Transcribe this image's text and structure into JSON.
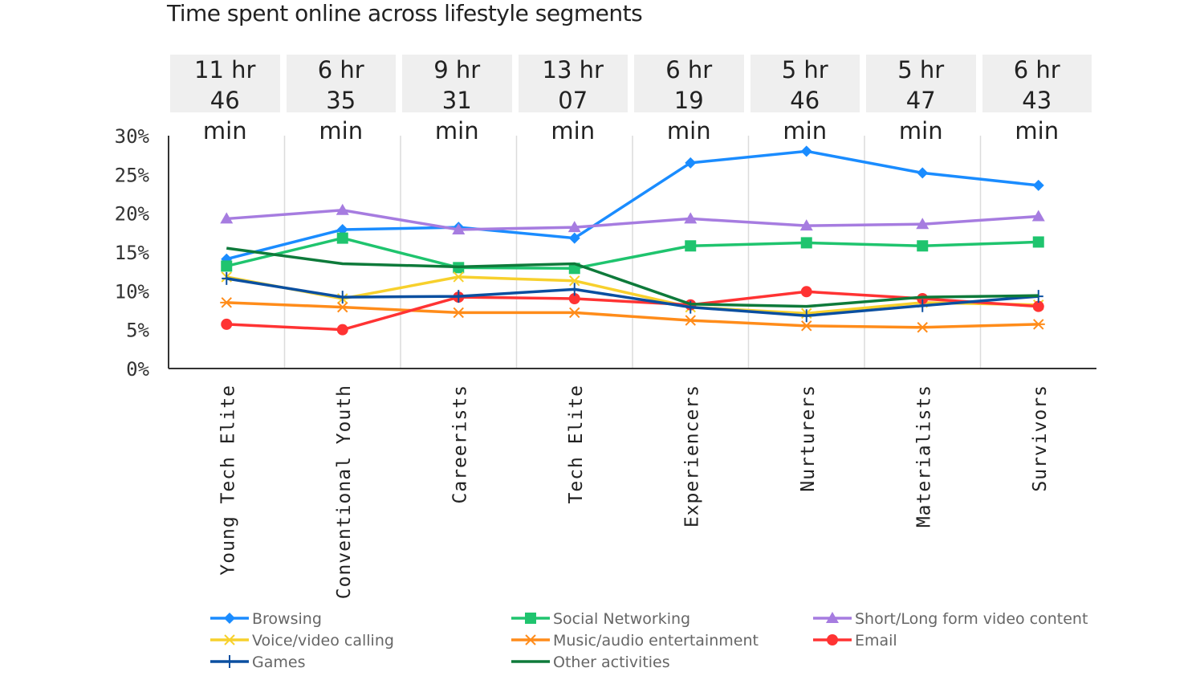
{
  "chart_data": {
    "type": "line",
    "title": "Time spent online across lifestyle segments",
    "categories": [
      "Young Tech Elite",
      "Conventional Youth",
      "Careerists",
      "Tech Elite",
      "Experiencers",
      "Nurturers",
      "Materialists",
      "Survivors"
    ],
    "category_headers": [
      "11 hr 46 min",
      "6 hr 35 min",
      "9 hr 31 min",
      "13 hr 07 min",
      "6 hr 19 min",
      "5 hr 46 min",
      "5 hr 47 min",
      "6 hr 43 min"
    ],
    "ylim": [
      0,
      30
    ],
    "yticks": [
      0,
      5,
      10,
      15,
      20,
      25,
      30
    ],
    "ytick_labels": [
      "0%",
      "5%",
      "10%",
      "15%",
      "20%",
      "25%",
      "30%"
    ],
    "grid": "vertical",
    "legend_placement": "bottom",
    "series": [
      {
        "name": "Browsing",
        "color": "#1a8cff",
        "marker": "diamond",
        "values": [
          14.1,
          17.9,
          18.2,
          16.8,
          26.5,
          28.0,
          25.2,
          23.6
        ]
      },
      {
        "name": "Social Networking",
        "color": "#1fc46e",
        "marker": "square",
        "values": [
          13.2,
          16.8,
          13.0,
          12.9,
          15.8,
          16.2,
          15.8,
          16.3
        ]
      },
      {
        "name": "Short/Long form video content",
        "color": "#a67ce0",
        "marker": "triangle",
        "values": [
          19.3,
          20.4,
          17.9,
          18.2,
          19.3,
          18.4,
          18.6,
          19.6
        ]
      },
      {
        "name": "Voice/video calling",
        "color": "#f7d02c",
        "marker": "x",
        "values": [
          11.8,
          9.0,
          11.8,
          11.3,
          7.9,
          7.1,
          8.5,
          8.2
        ]
      },
      {
        "name": "Music/audio entertainment",
        "color": "#ff8c1a",
        "marker": "asterisk",
        "values": [
          8.5,
          7.9,
          7.2,
          7.2,
          6.2,
          5.5,
          5.3,
          5.7
        ]
      },
      {
        "name": "Email",
        "color": "#ff3333",
        "marker": "circle",
        "values": [
          5.7,
          5.0,
          9.2,
          9.0,
          8.2,
          9.9,
          9.0,
          8.0
        ]
      },
      {
        "name": "Games",
        "color": "#0a4fa0",
        "marker": "plus",
        "values": [
          11.6,
          9.2,
          9.3,
          10.2,
          7.9,
          6.8,
          8.1,
          9.3
        ]
      },
      {
        "name": "Other activities",
        "color": "#0e7a3a",
        "marker": "none",
        "values": [
          15.5,
          13.5,
          13.1,
          13.5,
          8.3,
          8.0,
          9.2,
          9.4
        ]
      }
    ]
  }
}
